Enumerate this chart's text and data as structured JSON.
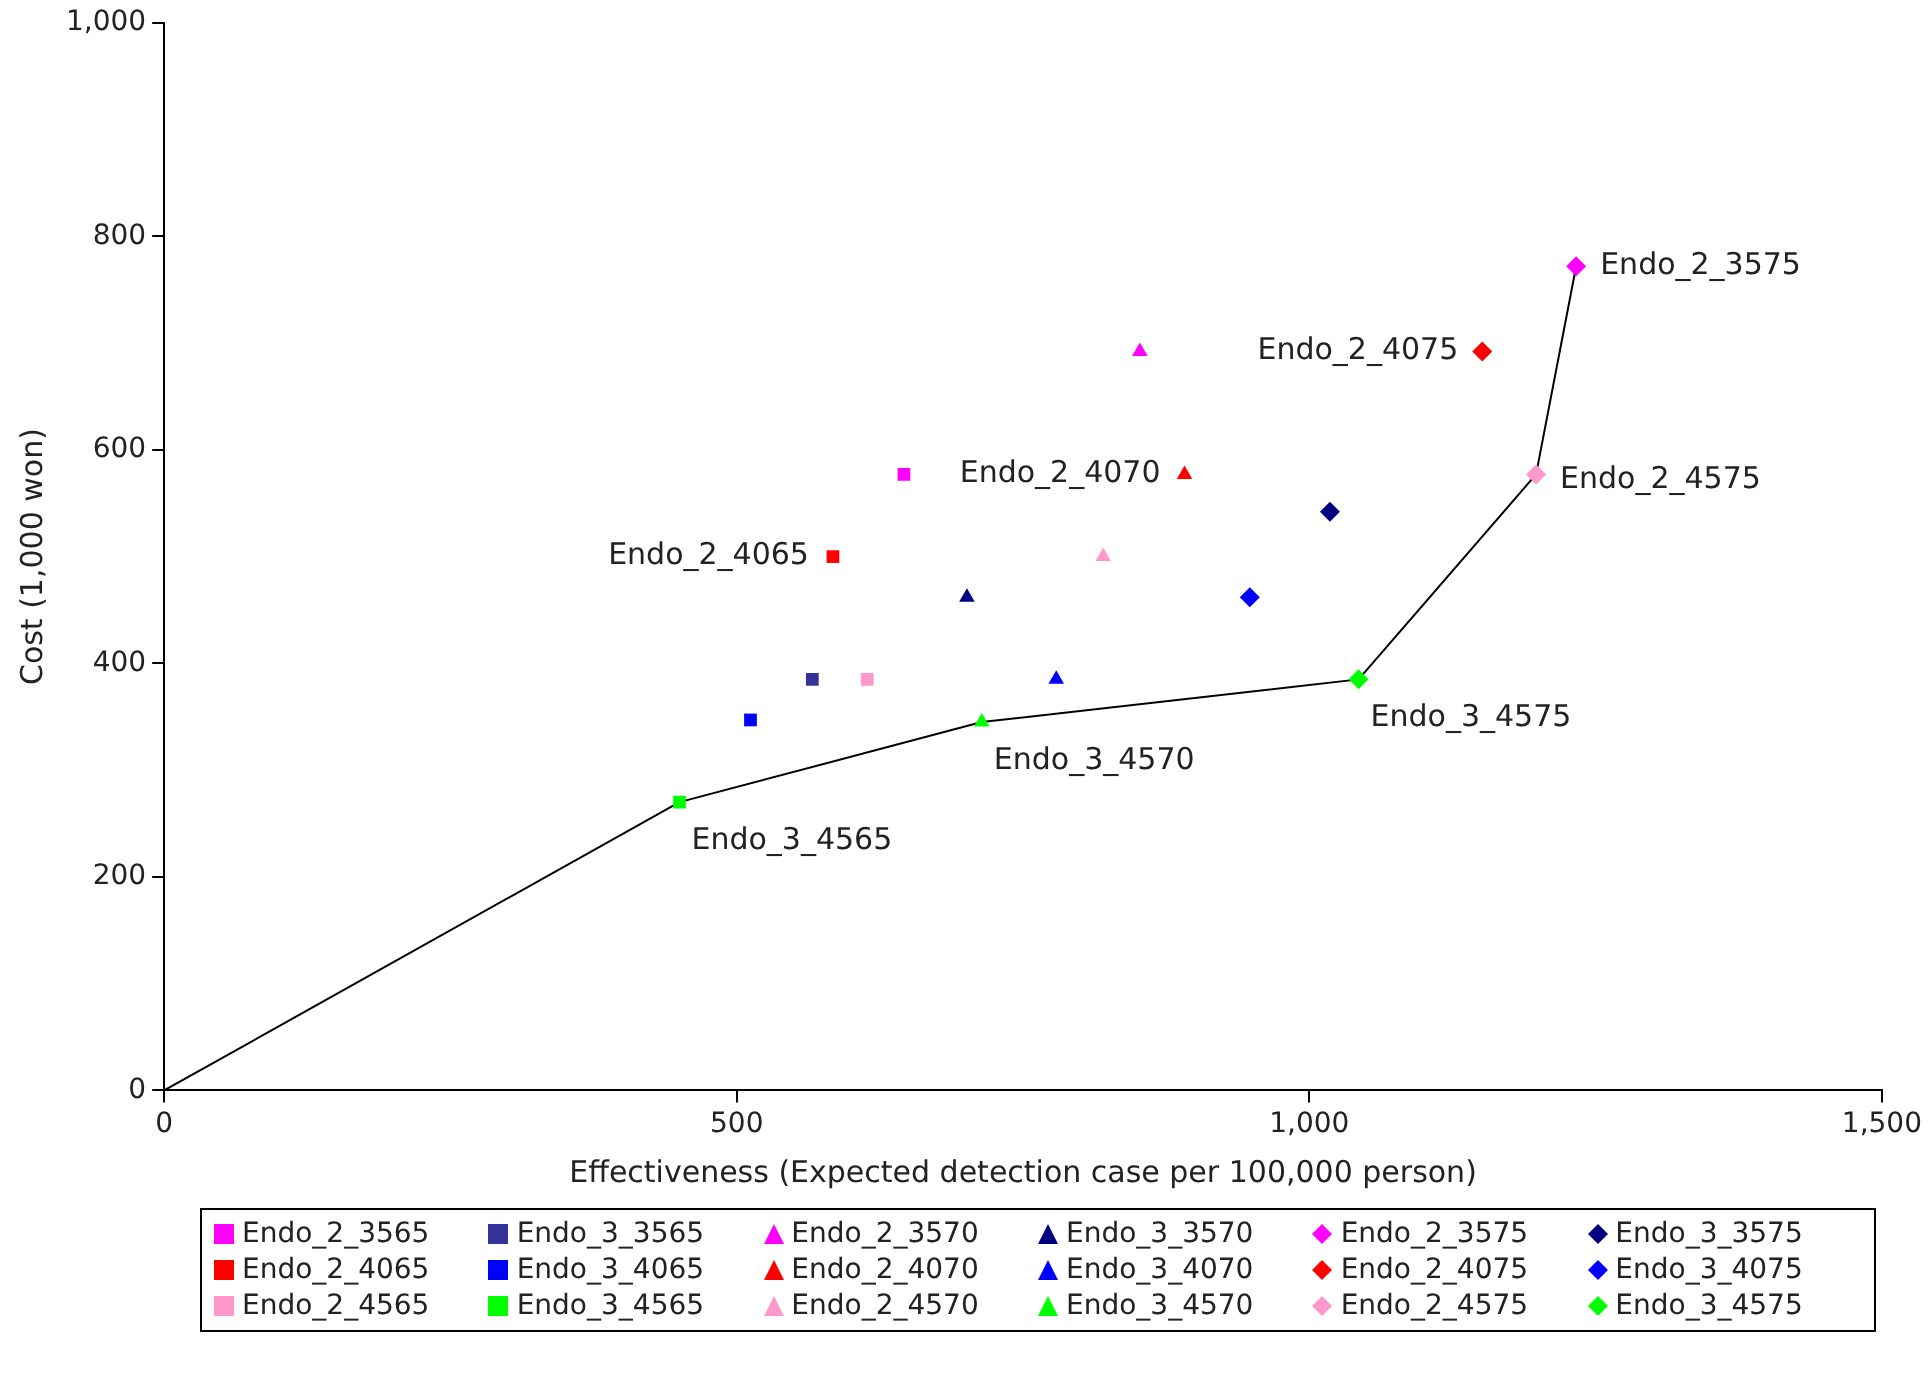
{
  "chart_data": {
    "type": "scatter",
    "xlabel": "Effectiveness (Expected detection case per 100,000 person)",
    "ylabel": "Cost (1,000 won)",
    "xlim": [
      0,
      1500
    ],
    "xticks": [
      0,
      500,
      {
        "value": 1000,
        "label": "1,000"
      },
      {
        "value": 1500,
        "label": "1,500"
      }
    ],
    "ylim": [
      0,
      1000
    ],
    "yticks": [
      0,
      200,
      400,
      600,
      800,
      {
        "value": 1000,
        "label": "1,000"
      }
    ],
    "grid": false,
    "legend": "bottom",
    "series": [
      {
        "name": "Endo_2_3565",
        "color": "#ff00ff",
        "marker": "square",
        "x": [
          646
        ],
        "values": [
          577
        ]
      },
      {
        "name": "Endo_3_3565",
        "color": "#333399",
        "marker": "square",
        "x": [
          566
        ],
        "values": [
          385
        ]
      },
      {
        "name": "Endo_2_3570",
        "color": "#ff00ff",
        "marker": "triangle",
        "x": [
          852
        ],
        "values": [
          692
        ]
      },
      {
        "name": "Endo_3_3570",
        "color": "#000080",
        "marker": "triangle",
        "x": [
          701
        ],
        "values": [
          462
        ]
      },
      {
        "name": "Endo_2_3575",
        "color": "#ff00ff",
        "marker": "diamond",
        "x": [
          1233
        ],
        "values": [
          772
        ]
      },
      {
        "name": "Endo_3_3575",
        "color": "#000080",
        "marker": "diamond",
        "x": [
          1018
        ],
        "values": [
          542
        ]
      },
      {
        "name": "Endo_2_4065",
        "color": "#ff0000",
        "marker": "square",
        "x": [
          584
        ],
        "values": [
          500
        ]
      },
      {
        "name": "Endo_3_4065",
        "color": "#0000ff",
        "marker": "square",
        "x": [
          512
        ],
        "values": [
          347
        ]
      },
      {
        "name": "Endo_2_4070",
        "color": "#ff0000",
        "marker": "triangle",
        "x": [
          891
        ],
        "values": [
          577
        ]
      },
      {
        "name": "Endo_3_4070",
        "color": "#0000ff",
        "marker": "triangle",
        "x": [
          779
        ],
        "values": [
          385
        ]
      },
      {
        "name": "Endo_2_4075",
        "color": "#ff0000",
        "marker": "diamond",
        "x": [
          1151
        ],
        "values": [
          692
        ]
      },
      {
        "name": "Endo_3_4075",
        "color": "#0000ff",
        "marker": "diamond",
        "x": [
          948
        ],
        "values": [
          462
        ]
      },
      {
        "name": "Endo_2_4565",
        "color": "#ff99cc",
        "marker": "square",
        "x": [
          614
        ],
        "values": [
          385
        ]
      },
      {
        "name": "Endo_3_4565",
        "color": "#00ff00",
        "marker": "square",
        "x": [
          450
        ],
        "values": [
          270
        ]
      },
      {
        "name": "Endo_2_4570",
        "color": "#ff99cc",
        "marker": "triangle",
        "x": [
          820
        ],
        "values": [
          500
        ]
      },
      {
        "name": "Endo_3_4570",
        "color": "#00ff00",
        "marker": "triangle",
        "x": [
          714
        ],
        "values": [
          345
        ]
      },
      {
        "name": "Endo_2_4575",
        "color": "#ff99cc",
        "marker": "diamond",
        "x": [
          1198
        ],
        "values": [
          577
        ]
      },
      {
        "name": "Endo_3_4575",
        "color": "#00ff00",
        "marker": "diamond",
        "x": [
          1043
        ],
        "values": [
          385
        ]
      },
      {
        "type": "line",
        "color": "#000000",
        "marker": "none",
        "x": [
          0,
          450,
          714,
          1043,
          1198,
          1233
        ],
        "values": [
          0,
          270,
          345,
          385,
          577,
          772
        ]
      }
    ],
    "annotations": [
      {
        "text": "Endo_2_4065",
        "x": 584,
        "y": 500
      },
      {
        "text": "Endo_2_4070",
        "x": 891,
        "y": 577
      },
      {
        "text": "Endo_2_4075",
        "x": 1151,
        "y": 692
      },
      {
        "text": "Endo_2_3575",
        "x": 1233,
        "y": 772
      },
      {
        "text": "Endo_2_4575",
        "x": 1198,
        "y": 577
      },
      {
        "text": "Endo_3_4575",
        "x": 1043,
        "y": 385
      },
      {
        "text": "Endo_3_4570",
        "x": 714,
        "y": 345
      },
      {
        "text": "Endo_3_4565",
        "x": 450,
        "y": 270
      }
    ]
  }
}
